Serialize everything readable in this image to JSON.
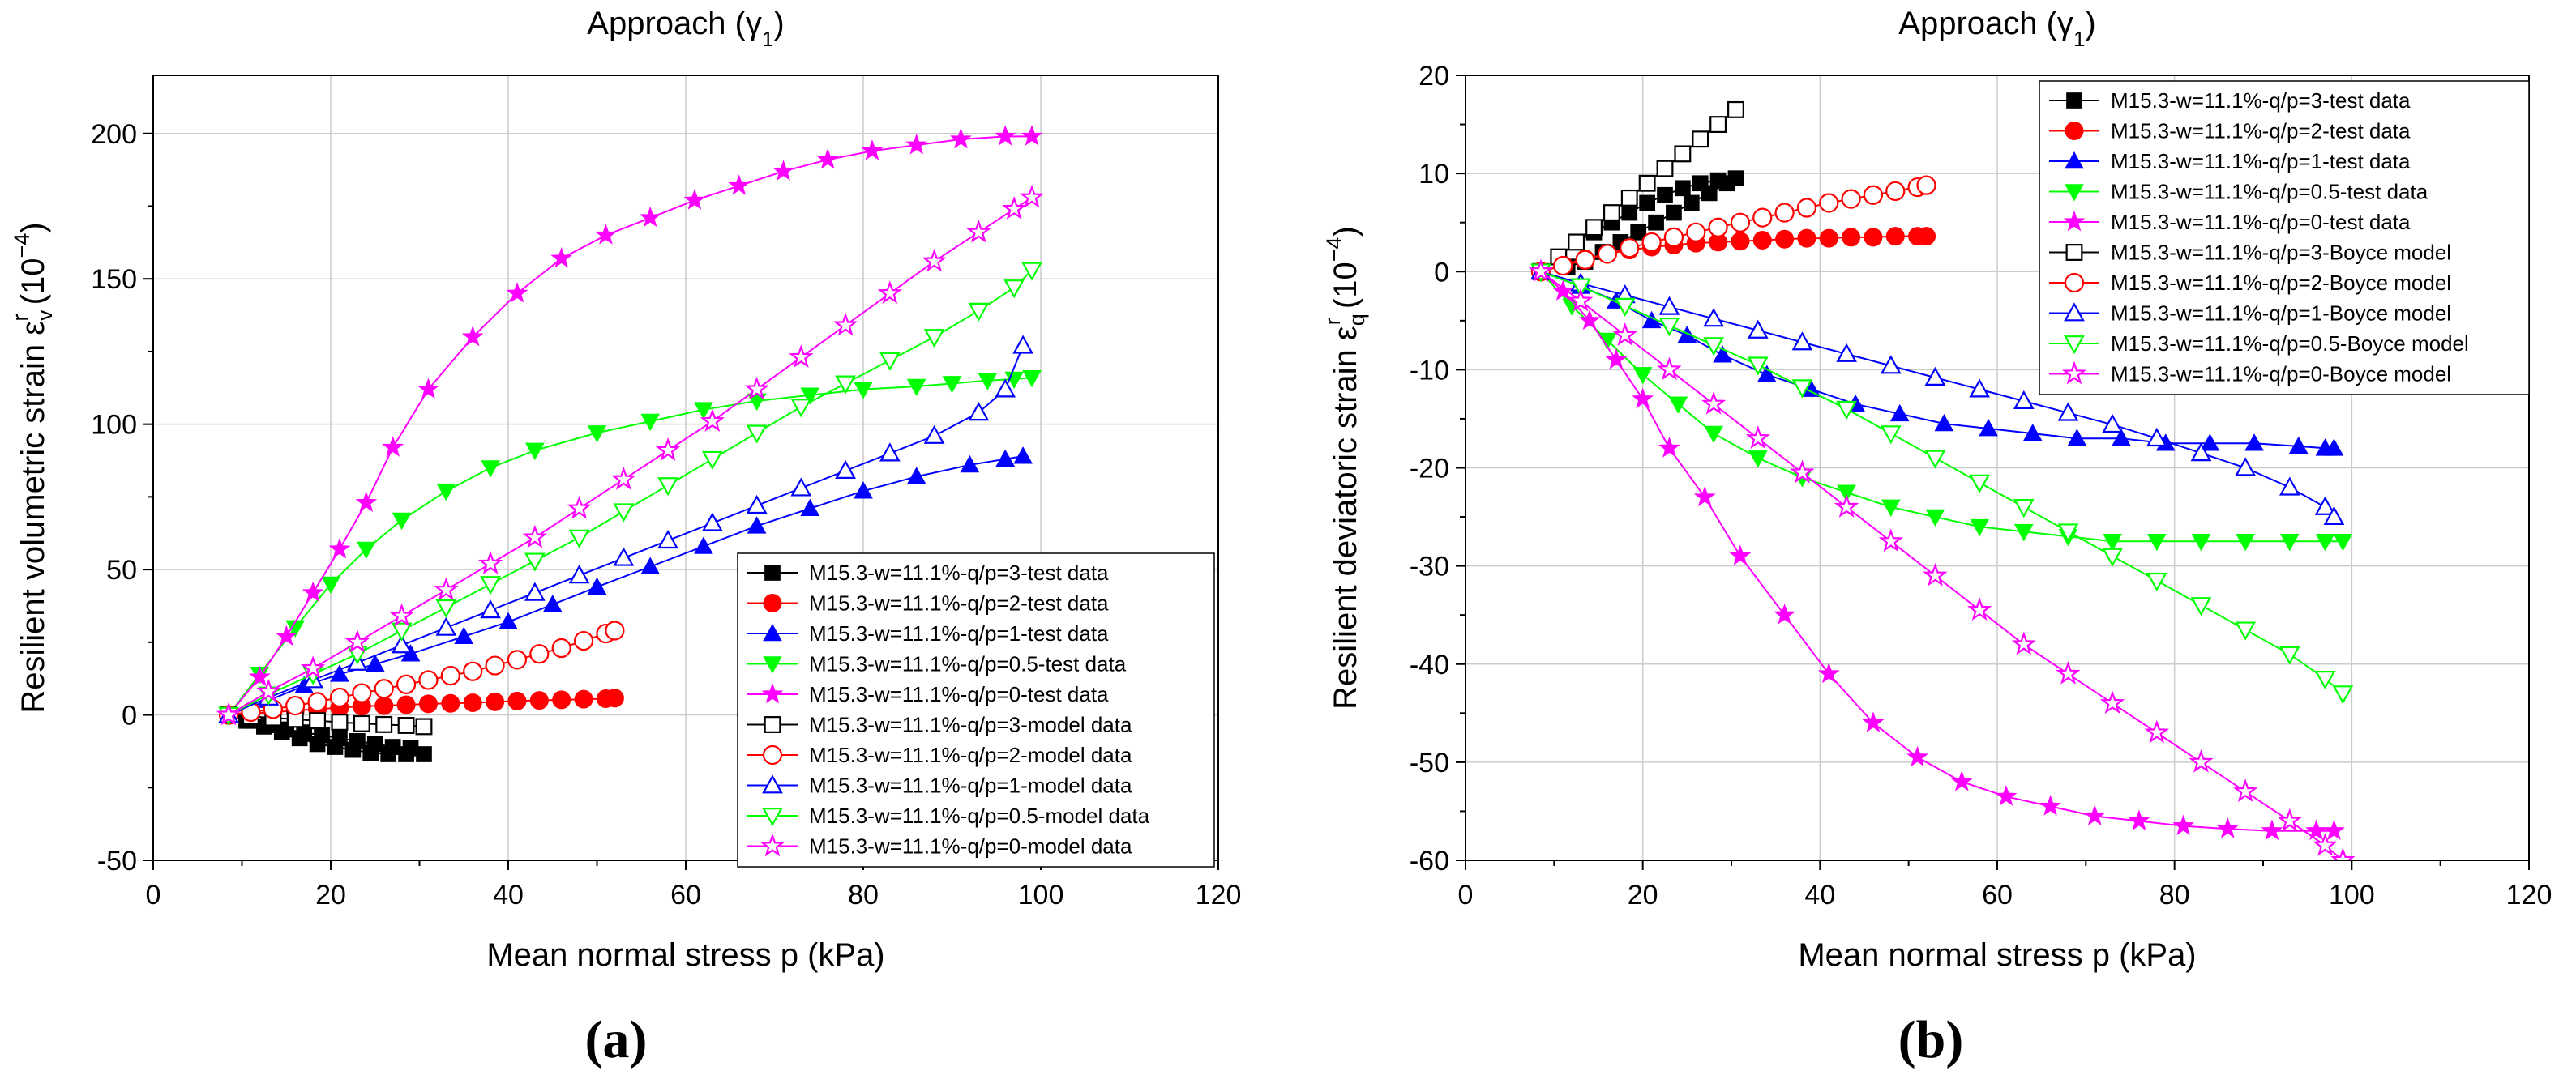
{
  "chart_data": [
    {
      "type": "scatter",
      "panel_label": "(a)",
      "title": "Approach (γ",
      "title_sub": "1",
      "title_end": ")",
      "xlabel": "Mean normal stress p (kPa)",
      "ylabel_main": "Resilient volumetric strain ε",
      "ylabel_sub": "v",
      "ylabel_sup": "r",
      "ylabel_unit": " (10",
      "ylabel_unit_sup": "−4",
      "ylabel_unit_end": ")",
      "xlim": [
        0,
        120
      ],
      "ylim": [
        -50,
        220
      ],
      "xticks": [
        0,
        20,
        40,
        60,
        80,
        100,
        120
      ],
      "yticks": [
        -50,
        0,
        50,
        100,
        150,
        200
      ],
      "grid": true,
      "legend_position": "bottom-right",
      "series": [
        {
          "name": "M15.3-w=11.1%-q/p=3-test data",
          "color": "#000000",
          "marker": "square",
          "filled": true,
          "x": [
            8.5,
            10.5,
            12.5,
            14.5,
            16.5,
            18.5,
            20.5,
            22.5,
            24.5,
            26.5,
            28.5,
            30.5,
            29,
            27,
            25,
            23,
            21,
            19,
            17,
            15,
            13,
            11
          ],
          "y": [
            0,
            -2,
            -4,
            -6,
            -8,
            -10,
            -11,
            -12,
            -13,
            -13.5,
            -13.5,
            -13.5,
            -11.5,
            -11,
            -10,
            -9,
            -8,
            -7,
            -6,
            -5,
            -3.5,
            -2
          ]
        },
        {
          "name": "M15.3-w=11.1%-q/p=2-test data",
          "color": "#ff0000",
          "marker": "circle",
          "filled": true,
          "x": [
            8.5,
            11,
            13.5,
            16,
            18.5,
            21,
            23.5,
            26,
            28.5,
            31,
            33.5,
            36,
            38.5,
            41,
            43.5,
            46,
            48.5,
            51,
            52
          ],
          "y": [
            0,
            0.5,
            1,
            1.5,
            2,
            2.5,
            3,
            3.2,
            3.5,
            3.8,
            4,
            4.2,
            4.5,
            4.8,
            5,
            5.2,
            5.4,
            5.6,
            5.8
          ]
        },
        {
          "name": "M15.3-w=11.1%-q/p=1-test data",
          "color": "#0000ff",
          "marker": "triangle-up",
          "filled": true,
          "x": [
            8.5,
            13,
            17,
            21,
            25,
            29,
            35,
            40,
            45,
            50,
            56,
            62,
            68,
            74,
            80,
            86,
            92,
            96,
            98
          ],
          "y": [
            0,
            5,
            10,
            14,
            17.5,
            21,
            27,
            32,
            38,
            44,
            51,
            58,
            65,
            71,
            77,
            82,
            86,
            88,
            89
          ]
        },
        {
          "name": "M15.3-w=11.1%-q/p=0.5-test data",
          "color": "#00ff00",
          "marker": "triangle-down",
          "filled": true,
          "x": [
            8.5,
            12,
            16,
            20,
            24,
            28,
            33,
            38,
            43,
            50,
            56,
            62,
            68,
            74,
            80,
            86,
            90,
            94,
            97,
            99
          ],
          "y": [
            0,
            14,
            30,
            45,
            57,
            67,
            77,
            85,
            91,
            97,
            101,
            105,
            108,
            110,
            112,
            113,
            114,
            115,
            115.5,
            116
          ]
        },
        {
          "name": "M15.3-w=11.1%-q/p=0-test data",
          "color": "#ff00ff",
          "marker": "star",
          "filled": true,
          "x": [
            8.5,
            12,
            15,
            18,
            21,
            24,
            27,
            31,
            36,
            41,
            46,
            51,
            56,
            61,
            66,
            71,
            76,
            81,
            86,
            91,
            96,
            99
          ],
          "y": [
            0,
            13,
            27,
            42,
            57,
            73,
            92,
            112,
            130,
            145,
            157,
            165,
            171,
            177,
            182,
            187,
            191,
            194,
            196,
            198,
            199,
            199
          ]
        },
        {
          "name": "M15.3-w=11.1%-q/p=3-model data",
          "color": "#000000",
          "marker": "square",
          "filled": false,
          "x": [
            8.5,
            11,
            13.5,
            16,
            18.5,
            21,
            23.5,
            26,
            28.5,
            30.5
          ],
          "y": [
            0,
            -0.5,
            -1,
            -1.5,
            -2,
            -2.5,
            -3,
            -3.3,
            -3.6,
            -4
          ]
        },
        {
          "name": "M15.3-w=11.1%-q/p=2-model data",
          "color": "#ff0000",
          "marker": "circle",
          "filled": false,
          "x": [
            8.5,
            11,
            13.5,
            16,
            18.5,
            21,
            23.5,
            26,
            28.5,
            31,
            33.5,
            36,
            38.5,
            41,
            43.5,
            46,
            48.5,
            51,
            52
          ],
          "y": [
            0,
            1,
            2,
            3.2,
            4.5,
            6,
            7.5,
            9,
            10.5,
            12,
            13.5,
            15,
            17,
            19,
            21,
            23,
            25.5,
            28,
            29
          ]
        },
        {
          "name": "M15.3-w=11.1%-q/p=1-model data",
          "color": "#0000ff",
          "marker": "triangle-up",
          "filled": false,
          "x": [
            8.5,
            13,
            18,
            23,
            28,
            33,
            38,
            43,
            48,
            53,
            58,
            63,
            68,
            73,
            78,
            83,
            88,
            93,
            96,
            98
          ],
          "y": [
            0,
            6,
            12,
            18,
            24,
            30,
            36,
            42,
            48,
            54,
            60,
            66,
            72,
            78,
            84,
            90,
            96,
            104,
            112,
            127
          ]
        },
        {
          "name": "M15.3-w=11.1%-q/p=0.5-model data",
          "color": "#00ff00",
          "marker": "triangle-down",
          "filled": false,
          "x": [
            8.5,
            13,
            18,
            23,
            28,
            33,
            38,
            43,
            48,
            53,
            58,
            63,
            68,
            73,
            78,
            83,
            88,
            93,
            97,
            99
          ],
          "y": [
            0,
            7,
            14,
            21,
            29,
            37,
            45,
            53,
            61,
            70,
            79,
            88,
            97,
            106,
            114,
            122,
            130,
            139,
            147,
            153
          ]
        },
        {
          "name": "M15.3-w=11.1%-q/p=0-model data",
          "color": "#ff00ff",
          "marker": "star",
          "filled": false,
          "x": [
            8.5,
            13,
            18,
            23,
            28,
            33,
            38,
            43,
            48,
            53,
            58,
            63,
            68,
            73,
            78,
            83,
            88,
            93,
            97,
            99
          ],
          "y": [
            0,
            8,
            16,
            25,
            34,
            43,
            52,
            61,
            71,
            81,
            91,
            101,
            112,
            123,
            134,
            145,
            156,
            166,
            174,
            178
          ]
        }
      ]
    },
    {
      "type": "scatter",
      "panel_label": "(b)",
      "title": "Approach (γ",
      "title_sub": "1",
      "title_end": ")",
      "xlabel": "Mean normal stress p (kPa)",
      "ylabel_main": "Resilient deviatoric strain ε",
      "ylabel_sub": "q",
      "ylabel_sup": "r",
      "ylabel_unit": " (10",
      "ylabel_unit_sup": "−4",
      "ylabel_unit_end": ")",
      "xlim": [
        0,
        120
      ],
      "ylim": [
        -60,
        20
      ],
      "xticks": [
        0,
        20,
        40,
        60,
        80,
        100,
        120
      ],
      "yticks": [
        -60,
        -50,
        -40,
        -30,
        -20,
        -10,
        0,
        10,
        20
      ],
      "grid": true,
      "legend_position": "top",
      "series": [
        {
          "name": "M15.3-w=11.1%-q/p=3-test data",
          "color": "#000000",
          "marker": "square",
          "filled": true,
          "x": [
            8.5,
            10.5,
            12.5,
            14.5,
            16.5,
            18.5,
            20.5,
            22.5,
            24.5,
            26.5,
            28.5,
            30.5,
            29.5,
            27.5,
            25.5,
            23.5,
            21.5,
            19.5,
            17.5,
            15.5,
            13.5,
            11.5
          ],
          "y": [
            0,
            1.5,
            3,
            4,
            5,
            6,
            7,
            7.8,
            8.5,
            9,
            9.3,
            9.5,
            9,
            8,
            7,
            6,
            5,
            4,
            3,
            2,
            1,
            0.5
          ]
        },
        {
          "name": "M15.3-w=11.1%-q/p=2-test data",
          "color": "#ff0000",
          "marker": "circle",
          "filled": true,
          "x": [
            8.5,
            11,
            13.5,
            16,
            18.5,
            21,
            23.5,
            26,
            28.5,
            31,
            33.5,
            36,
            38.5,
            41,
            43.5,
            46,
            48.5,
            51,
            52
          ],
          "y": [
            0,
            0.7,
            1.3,
            1.8,
            2.2,
            2.5,
            2.7,
            2.9,
            3,
            3.1,
            3.2,
            3.3,
            3.4,
            3.4,
            3.5,
            3.5,
            3.6,
            3.6,
            3.6
          ]
        },
        {
          "name": "M15.3-w=11.1%-q/p=1-test data",
          "color": "#0000ff",
          "marker": "triangle-up",
          "filled": true,
          "x": [
            8.5,
            13,
            17,
            21,
            25,
            29,
            34,
            39,
            44,
            49,
            54,
            59,
            64,
            69,
            74,
            79,
            84,
            89,
            94,
            97,
            98
          ],
          "y": [
            0,
            -1.5,
            -3,
            -5,
            -6.5,
            -8.5,
            -10.5,
            -12,
            -13.5,
            -14.5,
            -15.5,
            -16,
            -16.5,
            -17,
            -17,
            -17.5,
            -17.5,
            -17.5,
            -17.8,
            -18,
            -18
          ]
        },
        {
          "name": "M15.3-w=11.1%-q/p=0.5-test data",
          "color": "#00ff00",
          "marker": "triangle-down",
          "filled": true,
          "x": [
            8.5,
            12,
            16,
            20,
            24,
            28,
            33,
            38,
            43,
            48,
            53,
            58,
            63,
            68,
            73,
            78,
            83,
            88,
            93,
            97,
            99
          ],
          "y": [
            0,
            -3.5,
            -7,
            -10.5,
            -13.5,
            -16.5,
            -19,
            -21,
            -22.5,
            -24,
            -25,
            -26,
            -26.5,
            -27,
            -27.5,
            -27.5,
            -27.5,
            -27.5,
            -27.5,
            -27.5,
            -27.5
          ]
        },
        {
          "name": "M15.3-w=11.1%-q/p=0-test data",
          "color": "#ff00ff",
          "marker": "star",
          "filled": true,
          "x": [
            8.5,
            11,
            14,
            17,
            20,
            23,
            27,
            31,
            36,
            41,
            46,
            51,
            56,
            61,
            66,
            71,
            76,
            81,
            86,
            91,
            96,
            98
          ],
          "y": [
            0,
            -2,
            -5,
            -9,
            -13,
            -18,
            -23,
            -29,
            -35,
            -41,
            -46,
            -49.5,
            -52,
            -53.5,
            -54.5,
            -55.5,
            -56,
            -56.5,
            -56.8,
            -57,
            -57,
            -57
          ]
        },
        {
          "name": "M15.3-w=11.1%-q/p=3-Boyce model",
          "color": "#000000",
          "marker": "square",
          "filled": false,
          "x": [
            8.5,
            10.5,
            12.5,
            14.5,
            16.5,
            18.5,
            20.5,
            22.5,
            24.5,
            26.5,
            28.5,
            30.5
          ],
          "y": [
            0,
            1.5,
            3,
            4.5,
            6,
            7.5,
            9,
            10.5,
            12,
            13.5,
            15,
            16.5
          ]
        },
        {
          "name": "M15.3-w=11.1%-q/p=2-Boyce model",
          "color": "#ff0000",
          "marker": "circle",
          "filled": false,
          "x": [
            8.5,
            11,
            13.5,
            16,
            18.5,
            21,
            23.5,
            26,
            28.5,
            31,
            33.5,
            36,
            38.5,
            41,
            43.5,
            46,
            48.5,
            51,
            52
          ],
          "y": [
            0,
            0.6,
            1.2,
            1.8,
            2.4,
            3,
            3.5,
            4,
            4.5,
            5,
            5.5,
            6,
            6.5,
            7,
            7.4,
            7.8,
            8.2,
            8.6,
            8.8
          ]
        },
        {
          "name": "M15.3-w=11.1%-q/p=1-Boyce model",
          "color": "#0000ff",
          "marker": "triangle-up",
          "filled": false,
          "x": [
            8.5,
            13,
            18,
            23,
            28,
            33,
            38,
            43,
            48,
            53,
            58,
            63,
            68,
            73,
            78,
            83,
            88,
            93,
            97,
            98
          ],
          "y": [
            0,
            -1.2,
            -2.4,
            -3.6,
            -4.8,
            -6,
            -7.2,
            -8.4,
            -9.6,
            -10.8,
            -12,
            -13.2,
            -14.4,
            -15.6,
            -17,
            -18.5,
            -20,
            -22,
            -24,
            -25
          ]
        },
        {
          "name": "M15.3-w=11.1%-q/p=0.5-Boyce model",
          "color": "#00ff00",
          "marker": "triangle-down",
          "filled": false,
          "x": [
            8.5,
            13,
            18,
            23,
            28,
            33,
            38,
            43,
            48,
            53,
            58,
            63,
            68,
            73,
            78,
            83,
            88,
            93,
            97,
            99
          ],
          "y": [
            0,
            -1.5,
            -3.5,
            -5.5,
            -7.5,
            -9.5,
            -11.8,
            -14,
            -16.5,
            -19,
            -21.5,
            -24,
            -26.5,
            -29,
            -31.5,
            -34,
            -36.5,
            -39,
            -41.5,
            -43
          ]
        },
        {
          "name": "M15.3-w=11.1%-q/p=0-Boyce model",
          "color": "#ff00ff",
          "marker": "star",
          "filled": false,
          "x": [
            8.5,
            13,
            18,
            23,
            28,
            33,
            38,
            43,
            48,
            53,
            58,
            63,
            68,
            73,
            78,
            83,
            88,
            93,
            97,
            99
          ],
          "y": [
            0,
            -3,
            -6.5,
            -10,
            -13.5,
            -17,
            -20.5,
            -24,
            -27.5,
            -31,
            -34.5,
            -38,
            -41,
            -44,
            -47,
            -50,
            -53,
            -56,
            -58.5,
            -60
          ]
        }
      ]
    }
  ]
}
